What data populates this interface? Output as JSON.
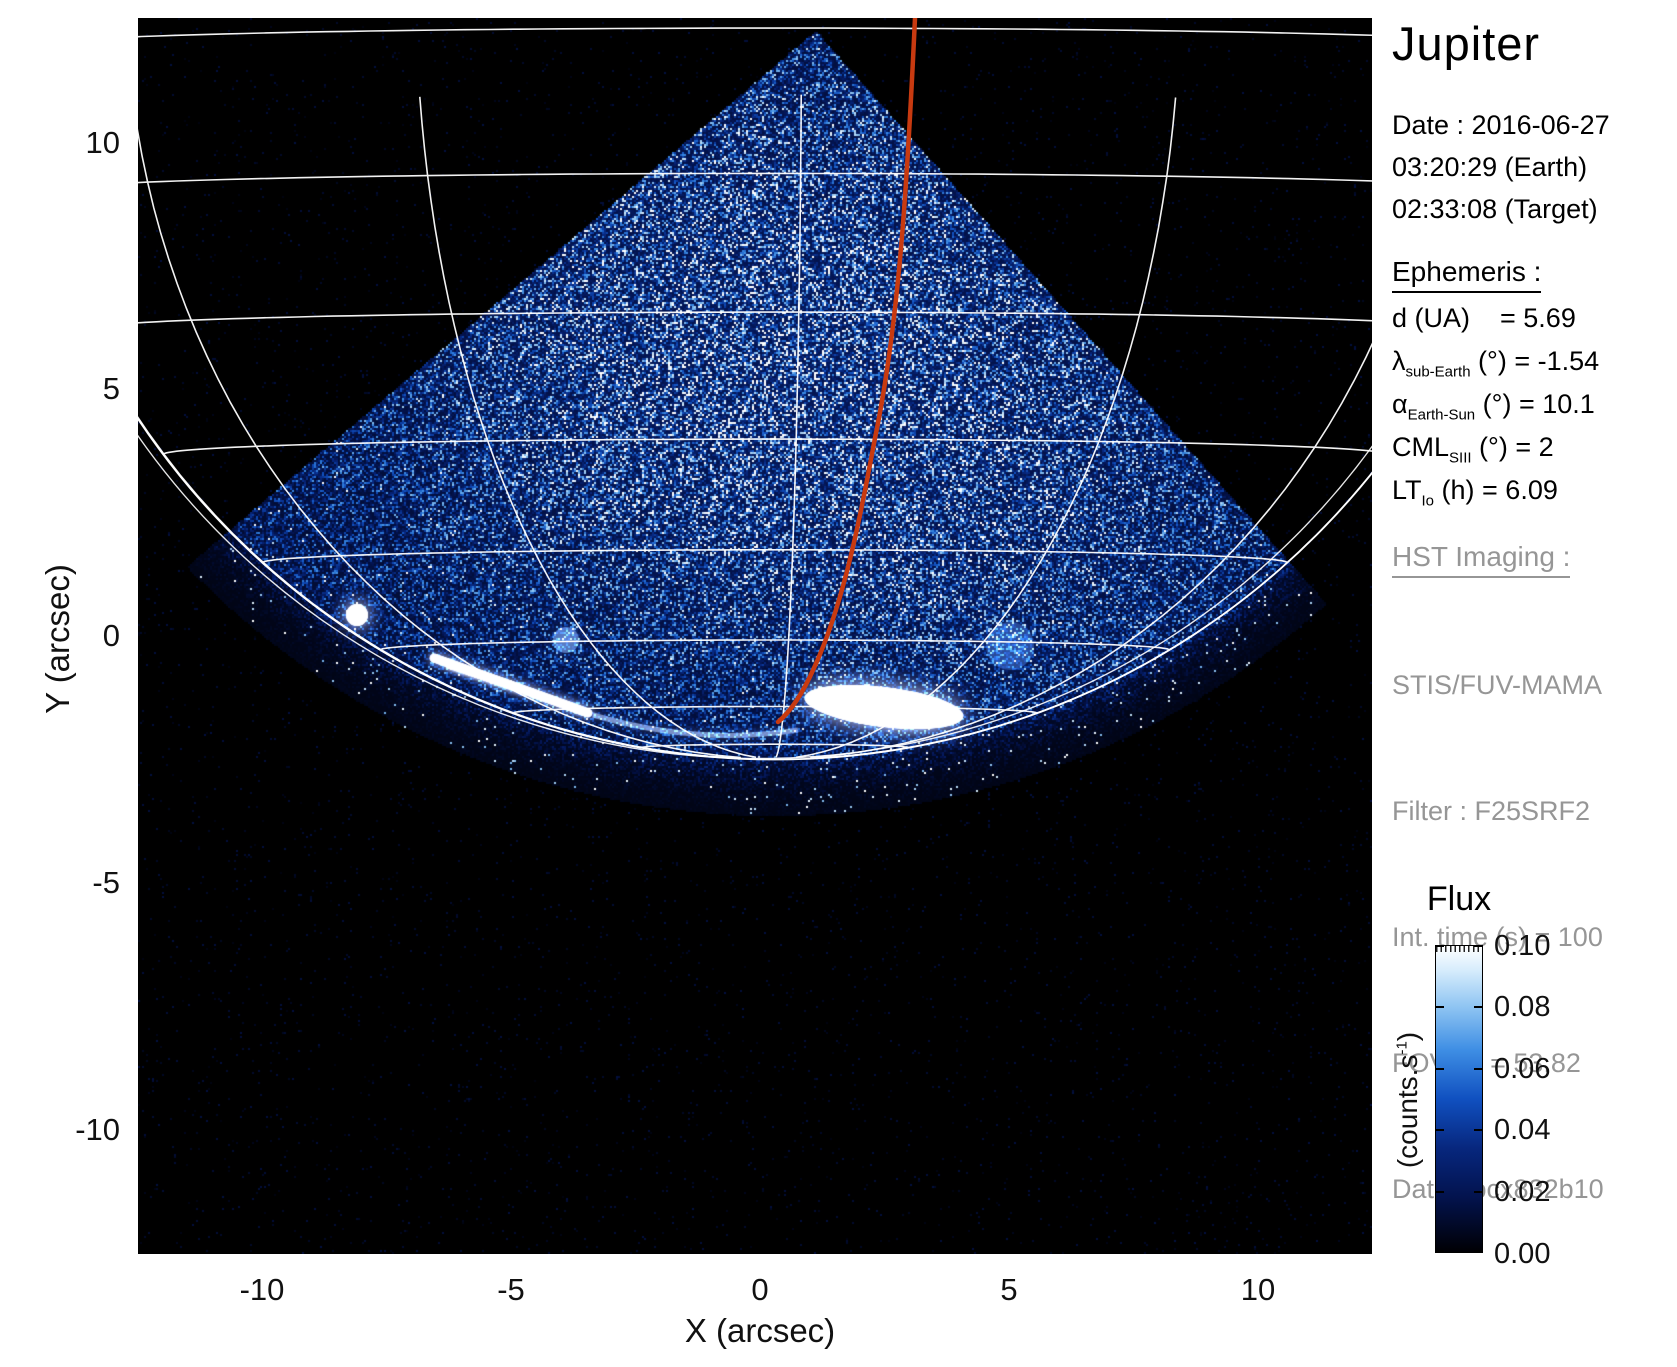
{
  "title": "Jupiter",
  "date_block": "Date : 2016-06-27\n03:20:29 (Earth)\n02:33:08 (Target)",
  "ephemeris": {
    "header": "Ephemeris :",
    "rows": [
      {
        "pre": "d (UA)",
        "sub": "",
        "post": "    = 5.69"
      },
      {
        "pre": "λ",
        "sub": "sub-Earth",
        "post": " (°) = -1.54"
      },
      {
        "pre": "α",
        "sub": "Earth-Sun",
        "post": " (°) = 10.1"
      },
      {
        "pre": "CML",
        "sub": "SIII",
        "post": " (°) = 2"
      },
      {
        "pre": "LT",
        "sub": "Io",
        "post": " (h) = 6.09"
      }
    ]
  },
  "hst": {
    "header": "HST Imaging :",
    "rows": [
      "STIS/FUV-MAMA",
      "Filter : F25SRF2",
      "Int. time (s) = 100",
      "FOV (\") = 53.82",
      "Data : ocx832b10"
    ]
  },
  "axes": {
    "x_label": "X (arcsec)",
    "y_label": "Y (arcsec)",
    "x_ticks": [
      "-10",
      "-5",
      "0",
      "5",
      "10"
    ],
    "y_ticks": [
      "10",
      "5",
      "0",
      "-5",
      "-10"
    ]
  },
  "colorbar": {
    "title": "Flux",
    "unit_pre": "(counts.s",
    "unit_sup": "-1",
    "unit_post": ")",
    "ticks": [
      "0.10",
      "0.08",
      "0.06",
      "0.04",
      "0.02",
      "0.00"
    ]
  },
  "colors": {
    "background": "#ffffff",
    "plot_bg": "#000000",
    "graticule": "#ffffff",
    "track": "#c83a10",
    "text_primary": "#000000",
    "text_secondary": "#969696",
    "flux_stops": [
      "#000004",
      "#03134e",
      "#07277e",
      "#1050c0",
      "#3e8ee4",
      "#8ec4f2",
      "#d6ecfc",
      "#ffffff"
    ],
    "flux_stop_pos": [
      0,
      0.18,
      0.34,
      0.5,
      0.66,
      0.8,
      0.92,
      1
    ]
  },
  "chart_data": {
    "type": "heatmap",
    "title": "Jupiter",
    "xlabel": "X (arcsec)",
    "ylabel": "Y (arcsec)",
    "xlim": [
      -12.5,
      12.4
    ],
    "ylim": [
      -12.5,
      12.5
    ],
    "x_ticks": [
      -10,
      -5,
      0,
      5,
      10
    ],
    "y_ticks": [
      10,
      5,
      0,
      -5,
      -10
    ],
    "grid": "planetary graticule overlay (white), no cartesian grid",
    "colorbar": {
      "label": "Flux",
      "unit": "counts.s-1",
      "min": 0.0,
      "max": 0.1,
      "ticks": [
        0.0,
        0.02,
        0.04,
        0.06,
        0.08,
        0.1
      ]
    },
    "image_content": "Wedge-shaped STIS FUV-MAMA exposure of Jupiter: blue speckled disk emission in a cone with apex near (3.1, 11.9) arcsec widening down to the planetary limb arc; black sky elsewhere",
    "features": [
      {
        "name": "auroral-spot",
        "x_arcsec": -8.1,
        "y_arcsec": 0.45,
        "flux": ">0.10 (saturated white)"
      },
      {
        "name": "auroral-arc-segment",
        "x_arcsec": -5.0,
        "y_arcsec": -1.0,
        "flux": "~0.09"
      },
      {
        "name": "main-auroral-patch",
        "x_arcsec": 2.3,
        "y_arcsec": -1.4,
        "flux": ">0.10 (saturated white)"
      },
      {
        "name": "io-footprint-track",
        "points_arcsec": [
          [
            3.1,
            12.5
          ],
          [
            2.9,
            8.6
          ],
          [
            2.5,
            4.8
          ],
          [
            2.0,
            1.7
          ],
          [
            1.5,
            -0.3
          ],
          [
            0.9,
            -1.3
          ],
          [
            0.36,
            -1.74
          ]
        ],
        "color": "#c83a10"
      }
    ],
    "annotations": [
      "d (UA) = 5.69",
      "λ_sub-Earth (°) = -1.54",
      "α_Earth-Sun (°) = 10.1",
      "CML_SIII (°) = 2",
      "LT_Io (h) = 6.09",
      "STIS/FUV-MAMA",
      "Filter : F25SRF2",
      "Int. time (s) = 100",
      "FOV (\") = 53.82",
      "Data : ocx832b10"
    ]
  }
}
